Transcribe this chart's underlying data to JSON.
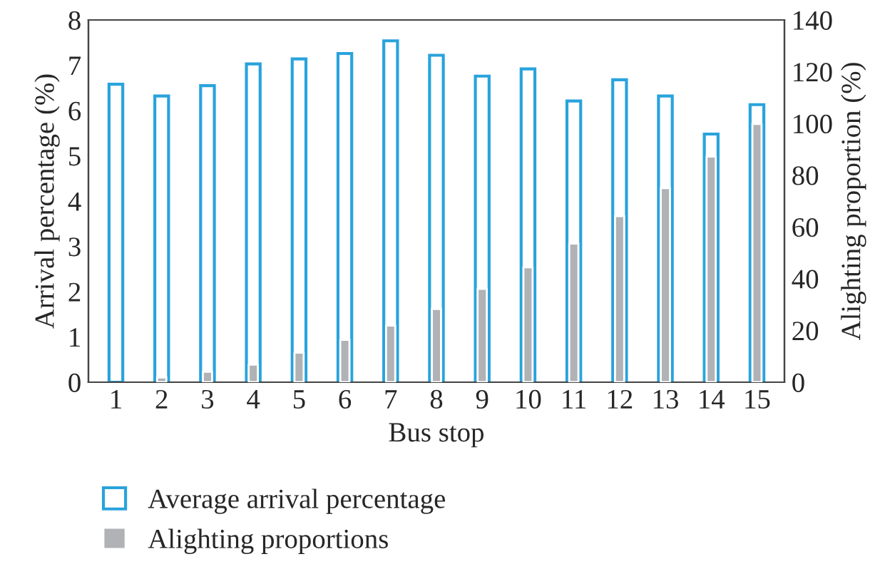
{
  "chart_data": {
    "type": "bar",
    "xlabel": "Bus stop",
    "ylabel": "Arrival percentage (%)",
    "y2label": "Alighting proportion (%)",
    "categories": [
      "1",
      "2",
      "3",
      "4",
      "5",
      "6",
      "7",
      "8",
      "9",
      "10",
      "11",
      "12",
      "13",
      "14",
      "15"
    ],
    "series": [
      {
        "name": "Average arrival percentage",
        "color": "#29a3dc",
        "values": [
          6.58,
          6.32,
          6.55,
          7.03,
          7.14,
          7.26,
          7.54,
          7.22,
          6.76,
          6.92,
          6.21,
          6.68,
          6.32,
          5.48,
          6.13
        ]
      },
      {
        "name": "Alighting proportions",
        "color": "#b1b2b5",
        "axis": "y2",
        "values": [
          null,
          1.8,
          4.0,
          6.8,
          11.4,
          16.4,
          21.9,
          28.3,
          36.1,
          44.4,
          53.6,
          64.2,
          75.0,
          87.2,
          99.8
        ]
      }
    ],
    "ylim": [
      0,
      8
    ],
    "yticks": [
      0,
      1,
      2,
      3,
      4,
      5,
      6,
      7,
      8
    ],
    "y2lim": [
      0,
      140
    ],
    "y2ticks": [
      0,
      20,
      40,
      60,
      80,
      100,
      120,
      140
    ],
    "grid": false,
    "legend": "bottom left"
  }
}
